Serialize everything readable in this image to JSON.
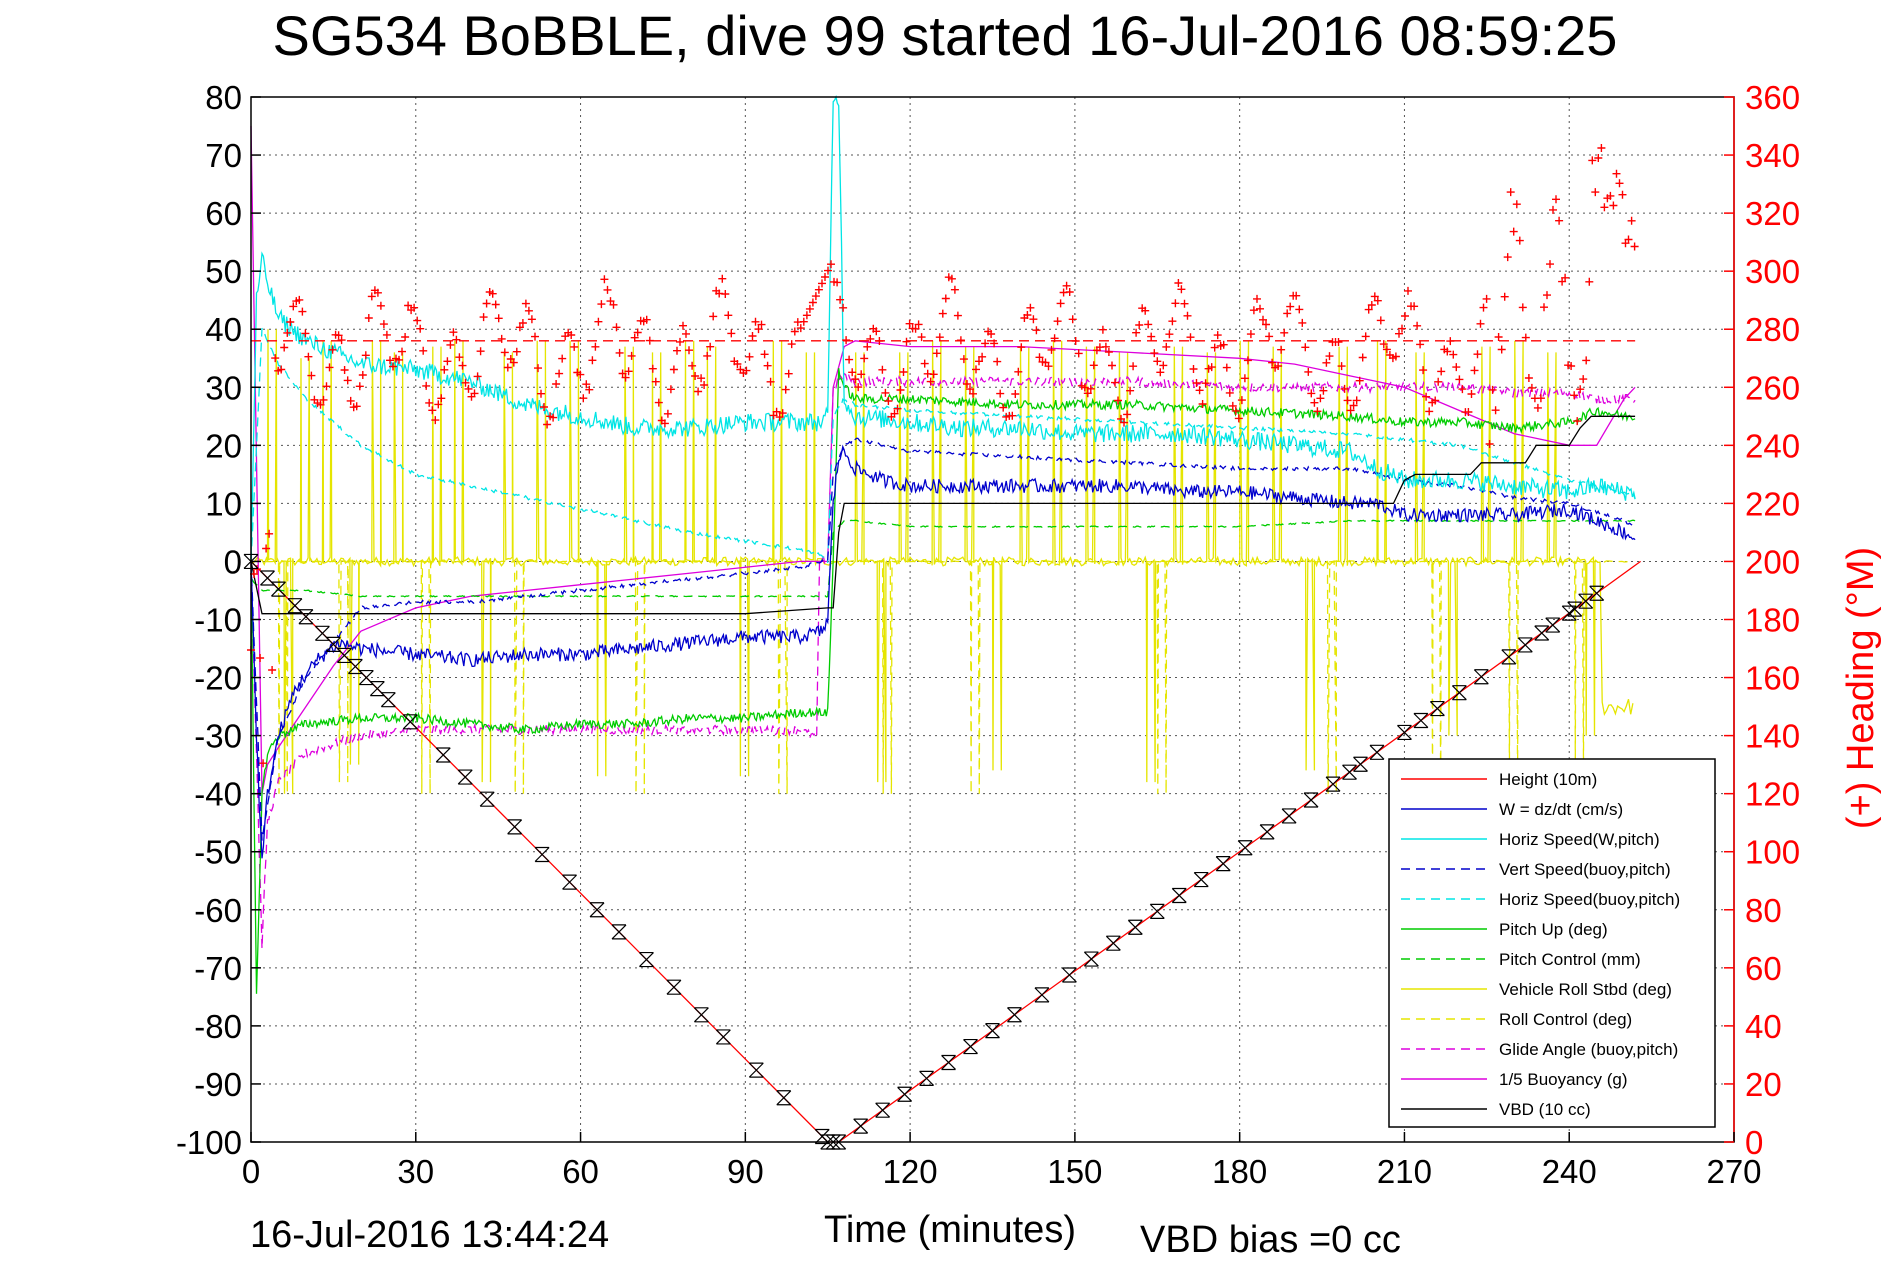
{
  "title": "SG534 BoBBLE, dive 99 started 16-Jul-2016 08:59:25",
  "footer": {
    "timestamp": "16-Jul-2016 13:44:24",
    "vbd_bias": "VBD bias =0 cc"
  },
  "chart_data": {
    "type": "line",
    "xlabel": "Time (minutes)",
    "ylabel": "",
    "y2label": "(+) Heading (°M)",
    "xlim": [
      0,
      270
    ],
    "ylim": [
      -100,
      80
    ],
    "y2lim": [
      0,
      360
    ],
    "xticks": [
      0,
      30,
      60,
      90,
      120,
      150,
      180,
      210,
      240,
      270
    ],
    "yticks": [
      80,
      70,
      60,
      50,
      40,
      30,
      20,
      10,
      0,
      -10,
      -20,
      -30,
      -40,
      -50,
      -60,
      -70,
      -80,
      -90,
      -100
    ],
    "y2ticks": [
      360,
      340,
      320,
      300,
      280,
      260,
      240,
      220,
      200,
      180,
      160,
      140,
      120,
      100,
      80,
      60,
      40,
      20,
      0
    ],
    "grid": true,
    "legend_position": "bottom-right",
    "colors": {
      "height": "#ff0000",
      "w": "#0000cc",
      "horiz_speed_w": "#00e5e5",
      "vert_speed_buoy": "#0000cc",
      "horiz_speed_buoy": "#00e5e5",
      "pitch_up": "#00cc00",
      "pitch_control": "#00cc00",
      "roll": "#e5e500",
      "roll_control": "#e5e500",
      "glide_angle": "#dd00dd",
      "buoyancy": "#dd00dd",
      "vbd": "#000000",
      "heading": "#ff0000",
      "heading_mean": "#ff0000",
      "markers": "#000000"
    },
    "series": [
      {
        "name": "Height (10m)",
        "key": "height",
        "style": "solid",
        "x": [
          0,
          105,
          107,
          253
        ],
        "y": [
          0,
          -100,
          -100,
          0
        ]
      },
      {
        "name": "W = dz/dt (cm/s)",
        "key": "w",
        "style": "solid",
        "x": [
          0,
          1,
          2,
          3,
          5,
          8,
          12,
          16,
          20,
          30,
          40,
          50,
          60,
          70,
          80,
          90,
          100,
          104,
          105,
          106,
          107,
          108,
          110,
          115,
          120,
          130,
          140,
          150,
          160,
          170,
          180,
          190,
          200,
          205,
          210,
          220,
          230,
          240,
          245,
          250,
          252
        ],
        "y": [
          0,
          -30,
          -52,
          -40,
          -30,
          -22,
          -17,
          -14,
          -15,
          -16,
          -17,
          -16,
          -16,
          -15,
          -14,
          -13,
          -13,
          -12,
          -10,
          10,
          18,
          19,
          16,
          14,
          13,
          13,
          13,
          13,
          13,
          12,
          12,
          11,
          10,
          10,
          8,
          8,
          8,
          9,
          7,
          5,
          4
        ],
        "noise": 1.2
      },
      {
        "name": "Horiz Speed(W,pitch)",
        "key": "horiz_speed_w",
        "style": "solid",
        "x": [
          0,
          1,
          2,
          3,
          5,
          10,
          20,
          30,
          40,
          50,
          60,
          70,
          80,
          90,
          100,
          104,
          105,
          106,
          107,
          108,
          110,
          120,
          130,
          140,
          150,
          160,
          170,
          180,
          190,
          200,
          205,
          210,
          220,
          230,
          240,
          245,
          250,
          252
        ],
        "y": [
          0,
          45,
          52,
          48,
          42,
          38,
          34,
          33,
          31,
          27,
          25,
          23,
          23,
          24,
          24,
          24,
          25,
          80,
          80,
          28,
          25,
          24,
          23,
          23,
          22,
          22,
          22,
          21,
          20,
          19,
          16,
          14,
          14,
          13,
          12,
          13,
          12,
          12
        ],
        "noise": 1.6
      },
      {
        "name": "Vert Speed(buoy,pitch)",
        "key": "vert_speed_buoy",
        "style": "dash",
        "x": [
          0,
          2,
          5,
          10,
          20,
          30,
          40,
          60,
          80,
          100,
          104,
          105,
          106,
          108,
          110,
          120,
          140,
          160,
          180,
          200,
          210,
          220,
          230,
          240,
          250,
          252
        ],
        "y": [
          0,
          -48,
          -30,
          -20,
          -8,
          -7,
          -7,
          -5,
          -3,
          -1,
          0,
          0,
          15,
          20,
          21,
          19,
          18,
          17,
          16,
          16,
          14,
          13,
          11,
          10,
          7,
          6
        ],
        "noise": 0.3
      },
      {
        "name": "Horiz Speed(buoy,pitch)",
        "key": "horiz_speed_buoy",
        "style": "dash",
        "x": [
          0,
          2,
          5,
          10,
          20,
          30,
          40,
          60,
          80,
          100,
          104,
          105,
          106,
          108,
          110,
          120,
          140,
          160,
          180,
          200,
          210,
          220,
          230,
          240,
          250,
          252
        ],
        "y": [
          0,
          40,
          34,
          28,
          20,
          15,
          13,
          9,
          5,
          2,
          1,
          0,
          25,
          28,
          27,
          26,
          25,
          24,
          23,
          22,
          21,
          20,
          17,
          14,
          12,
          11
        ],
        "noise": 0.3
      },
      {
        "name": "Pitch Up (deg)",
        "key": "pitch_up",
        "style": "solid",
        "x": [
          0,
          1,
          2,
          3,
          5,
          10,
          20,
          30,
          40,
          50,
          60,
          70,
          80,
          90,
          100,
          104,
          105,
          106,
          107,
          108,
          110,
          120,
          140,
          160,
          180,
          200,
          210,
          220,
          230,
          240,
          245,
          250,
          252
        ],
        "y": [
          0,
          -75,
          -40,
          -33,
          -30,
          -28,
          -27,
          -27,
          -28,
          -29,
          -28,
          -28,
          -27,
          -27,
          -26,
          -26,
          -26,
          0,
          33,
          30,
          28,
          28,
          27,
          27,
          26,
          25,
          24,
          24,
          23,
          24,
          26,
          25,
          25
        ],
        "noise": 0.8
      },
      {
        "name": "Pitch Control (mm)",
        "key": "pitch_control",
        "style": "dash",
        "x": [
          0,
          2,
          5,
          10,
          20,
          30,
          40,
          60,
          80,
          100,
          104,
          105,
          106,
          108,
          110,
          120,
          140,
          160,
          180,
          200,
          210,
          220,
          230,
          240,
          250,
          252
        ],
        "y": [
          -3,
          -5,
          -5,
          -5,
          -6,
          -6,
          -6,
          -6,
          -6,
          -6,
          -6,
          -6,
          5,
          7,
          7,
          6,
          6,
          6,
          6,
          7,
          7,
          7,
          7,
          7,
          7,
          7
        ],
        "noise": 0.1
      },
      {
        "name": "Vehicle Roll Stbd (deg)",
        "key": "roll",
        "style": "solid",
        "x": [
          0,
          252
        ],
        "y": [
          0,
          0
        ],
        "spikes": true
      },
      {
        "name": "Roll Control (deg)",
        "key": "roll_control",
        "style": "dash",
        "x": [
          0,
          252
        ],
        "y": [
          0,
          0
        ],
        "spikes": true
      },
      {
        "name": "Glide Angle (buoy,pitch)",
        "key": "glide_angle",
        "style": "dash",
        "x": [
          0,
          2,
          3,
          5,
          10,
          20,
          30,
          40,
          60,
          80,
          90,
          100,
          102,
          103,
          103.5,
          104,
          105,
          106,
          108,
          110,
          120,
          140,
          160,
          180,
          200,
          210,
          220,
          230,
          240,
          245,
          250,
          252
        ],
        "y": [
          0,
          -66,
          -45,
          -38,
          -33,
          -30,
          -29,
          -29,
          -29,
          -29,
          -29,
          -29,
          -30,
          -30,
          0,
          0,
          0,
          30,
          32,
          31,
          31,
          31,
          31,
          30,
          30,
          30,
          30,
          29,
          29,
          28,
          28,
          28
        ],
        "noise": 0.8
      },
      {
        "name": "1/5 Buoyancy (g)",
        "key": "buoyancy",
        "style": "solid",
        "x": [
          0,
          2,
          3,
          5,
          10,
          15,
          20,
          30,
          40,
          60,
          80,
          100,
          104,
          105,
          106,
          108,
          110,
          120,
          140,
          160,
          180,
          190,
          200,
          210,
          220,
          230,
          240,
          245,
          250,
          252
        ],
        "y": [
          75,
          -40,
          -35,
          -32,
          -25,
          -18,
          -12,
          -8,
          -6,
          -4,
          -2,
          0,
          0,
          0,
          30,
          37,
          38,
          37,
          37,
          36,
          35,
          34,
          32,
          30,
          26,
          22,
          20,
          20,
          28,
          30
        ],
        "noise": 0
      },
      {
        "name": "VBD (10 cc)",
        "key": "vbd",
        "style": "solid",
        "x": [
          0,
          2,
          2,
          90,
          105,
          106,
          107,
          108,
          108,
          208,
          210,
          212,
          222,
          224,
          232,
          234,
          240,
          242,
          244,
          246,
          252
        ],
        "y": [
          0,
          -9,
          -9,
          -9,
          -8,
          -8,
          5,
          10,
          10,
          10,
          14,
          15,
          15,
          17,
          17,
          20,
          20,
          23,
          25,
          25,
          25
        ],
        "noise": 0
      }
    ],
    "heading_mean": 276,
    "heading_range": [
      0,
      252
    ]
  },
  "legend": [
    {
      "label": "Height (10m)",
      "key": "height",
      "style": "solid"
    },
    {
      "label": "W = dz/dt (cm/s)",
      "key": "w",
      "style": "solid"
    },
    {
      "label": "Horiz Speed(W,pitch)",
      "key": "horiz_speed_w",
      "style": "solid"
    },
    {
      "label": "Vert Speed(buoy,pitch)",
      "key": "vert_speed_buoy",
      "style": "dash"
    },
    {
      "label": "Horiz Speed(buoy,pitch)",
      "key": "horiz_speed_buoy",
      "style": "dash"
    },
    {
      "label": "Pitch Up (deg)",
      "key": "pitch_up",
      "style": "solid"
    },
    {
      "label": "Pitch Control (mm)",
      "key": "pitch_control",
      "style": "dash"
    },
    {
      "label": "Vehicle Roll Stbd (deg)",
      "key": "roll",
      "style": "solid"
    },
    {
      "label": "Roll Control (deg)",
      "key": "roll_control",
      "style": "dash"
    },
    {
      "label": "Glide Angle (buoy,pitch)",
      "key": "glide_angle",
      "style": "dash"
    },
    {
      "label": "1/5 Buoyancy (g)",
      "key": "buoyancy",
      "style": "solid"
    },
    {
      "label": "VBD (10 cc)",
      "key": "vbd",
      "style": "solid"
    }
  ]
}
